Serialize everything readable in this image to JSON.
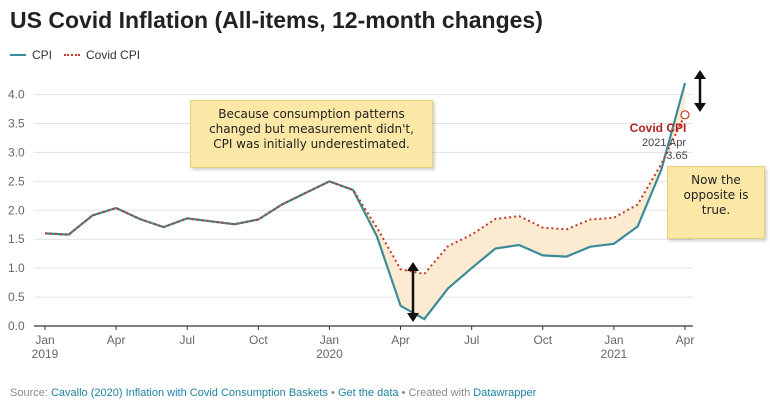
{
  "title": "US Covid Inflation (All-items, 12-month changes)",
  "legend": [
    {
      "name": "CPI",
      "color": "#3a8c99",
      "style": "solid"
    },
    {
      "name": "Covid CPI",
      "color": "#c0392b",
      "style": "dotted"
    }
  ],
  "colors": {
    "cpi": "#3a8c99",
    "covid": "#c0392b",
    "fill": "#fbe8c8",
    "arrow": "#111111",
    "note_bg": "#fbe8a6"
  },
  "annotations": {
    "left": [
      "Because consumption patterns",
      "changed but measurement didn't,",
      "CPI was initially underestimated."
    ],
    "right": [
      "Now the",
      "opposite is",
      "true."
    ],
    "covid_label": "Covid CPI",
    "covid_date": "2021 Apr",
    "covid_value": "3.65"
  },
  "footer": {
    "prefix": "Source:",
    "source_link": "Cavallo (2020) Inflation with Covid Consumption Baskets",
    "sep1": "•",
    "get_data": "Get the data",
    "sep2": "• Created with",
    "tool": "Datawrapper"
  },
  "chart_data": {
    "type": "line",
    "title": "US Covid Inflation (All-items, 12-month changes)",
    "xlabel": "",
    "ylabel": "",
    "ylim": [
      0,
      4.2
    ],
    "yticks": [
      "0.0",
      "0.5",
      "1.0",
      "1.5",
      "2.0",
      "2.5",
      "3.0",
      "3.5",
      "4.0"
    ],
    "xtick_labels": [
      {
        "index": 0,
        "label": "Jan",
        "year": "2019"
      },
      {
        "index": 3,
        "label": "Apr",
        "year": ""
      },
      {
        "index": 6,
        "label": "Jul",
        "year": ""
      },
      {
        "index": 9,
        "label": "Oct",
        "year": ""
      },
      {
        "index": 12,
        "label": "Jan",
        "year": "2020"
      },
      {
        "index": 15,
        "label": "Apr",
        "year": ""
      },
      {
        "index": 18,
        "label": "Jul",
        "year": ""
      },
      {
        "index": 21,
        "label": "Oct",
        "year": ""
      },
      {
        "index": 24,
        "label": "Jan",
        "year": "2021"
      },
      {
        "index": 27,
        "label": "Apr",
        "year": ""
      }
    ],
    "categories": [
      "Jan 2019",
      "Feb 2019",
      "Mar 2019",
      "Apr 2019",
      "May 2019",
      "Jun 2019",
      "Jul 2019",
      "Aug 2019",
      "Sep 2019",
      "Oct 2019",
      "Nov 2019",
      "Dec 2019",
      "Jan 2020",
      "Feb 2020",
      "Mar 2020",
      "Apr 2020",
      "May 2020",
      "Jun 2020",
      "Jul 2020",
      "Aug 2020",
      "Sep 2020",
      "Oct 2020",
      "Nov 2020",
      "Dec 2020",
      "Jan 2021",
      "Feb 2021",
      "Mar 2021",
      "Apr 2021"
    ],
    "series": [
      {
        "name": "CPI",
        "values": [
          1.6,
          1.58,
          1.91,
          2.04,
          1.85,
          1.71,
          1.86,
          1.81,
          1.76,
          1.84,
          2.1,
          2.3,
          2.5,
          2.35,
          1.55,
          0.35,
          0.12,
          0.65,
          1.0,
          1.34,
          1.4,
          1.22,
          1.2,
          1.37,
          1.42,
          1.72,
          2.7,
          4.2
        ]
      },
      {
        "name": "Covid CPI",
        "values": [
          1.6,
          1.58,
          1.91,
          2.04,
          1.85,
          1.71,
          1.86,
          1.81,
          1.76,
          1.84,
          2.1,
          2.3,
          2.5,
          2.35,
          1.7,
          0.98,
          0.9,
          1.38,
          1.58,
          1.85,
          1.9,
          1.7,
          1.67,
          1.84,
          1.87,
          2.1,
          2.8,
          3.65
        ]
      }
    ],
    "callout": {
      "series": "Covid CPI",
      "date": "2021 Apr",
      "value": 3.65
    }
  }
}
